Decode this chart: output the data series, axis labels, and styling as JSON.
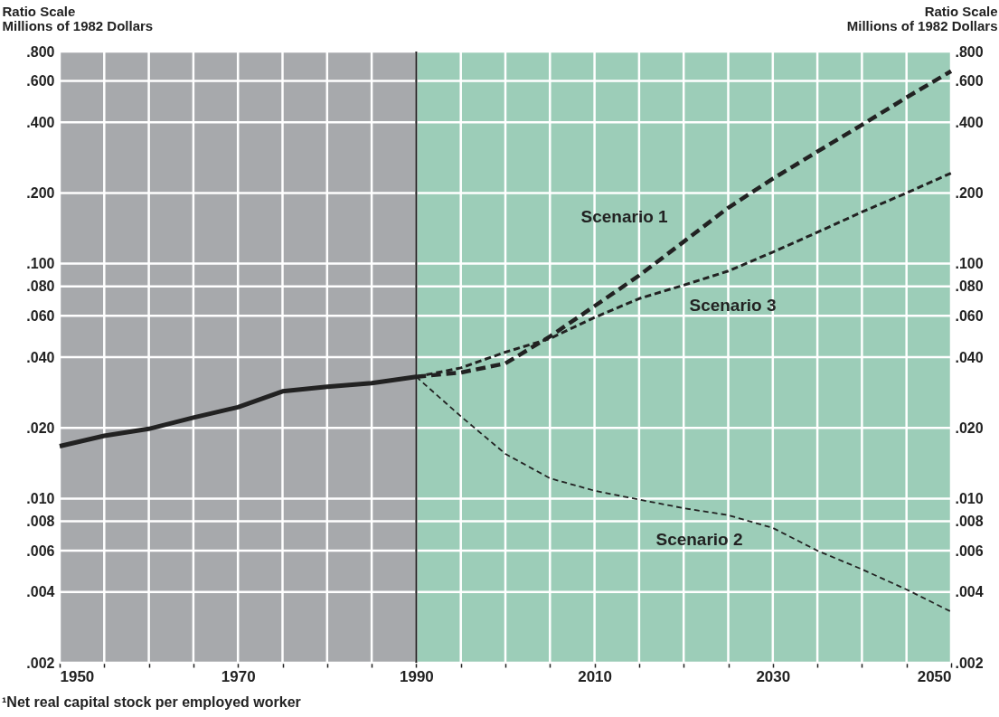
{
  "chart_data": {
    "type": "line",
    "ylabel": "Ratio Scale\nMillions of 1982 Dollars",
    "y2label": "Ratio Scale\nMillions of 1982 Dollars",
    "annotations": [
      "¹Net real capital stock per employed worker"
    ],
    "log": "y",
    "grid": true,
    "legend": false,
    "xlim": [
      1950,
      2050
    ],
    "xticks": [
      1950,
      {
        "value": 1955,
        "label": null
      },
      {
        "value": 1960,
        "label": null
      },
      {
        "value": 1965,
        "label": null
      },
      1970,
      {
        "value": 1975,
        "label": null
      },
      {
        "value": 1980,
        "label": null
      },
      {
        "value": 1985,
        "label": null
      },
      1990,
      {
        "value": 1995,
        "label": null
      },
      {
        "value": 2000,
        "label": null
      },
      {
        "value": 2005,
        "label": null
      },
      2010,
      {
        "value": 2015,
        "label": null
      },
      {
        "value": 2020,
        "label": null
      },
      {
        "value": 2025,
        "label": null
      },
      2030,
      {
        "value": 2035,
        "label": null
      },
      {
        "value": 2040,
        "label": null
      },
      {
        "value": 2045,
        "label": null
      },
      2050
    ],
    "ylim": [
      0.002,
      0.8
    ],
    "yticks": [
      {
        "value": 0.002,
        "label": ".002"
      },
      {
        "value": 0.004,
        "label": ".004"
      },
      {
        "value": 0.006,
        "label": ".006"
      },
      {
        "value": 0.008,
        "label": ".008"
      },
      {
        "value": 0.01,
        "label": ".010"
      },
      {
        "value": 0.02,
        "label": ".020"
      },
      {
        "value": 0.04,
        "label": ".040"
      },
      {
        "value": 0.06,
        "label": ".060"
      },
      {
        "value": 0.08,
        "label": ".080"
      },
      {
        "value": 0.1,
        "label": ".100"
      },
      {
        "value": 0.2,
        "label": ".200"
      },
      {
        "value": 0.4,
        "label": ".400"
      },
      {
        "value": 0.6,
        "label": ".600"
      },
      {
        "value": 0.8,
        "label": ".800"
      }
    ],
    "bands": [
      {
        "axis": "x",
        "from": 1950,
        "to": 1990,
        "color": "#a7a9ac"
      },
      {
        "axis": "x",
        "from": 1990,
        "to": 2050,
        "color": "#9ccdb8"
      }
    ],
    "ref_lines": [
      {
        "axis": "x",
        "value": 1990,
        "color": "#222222",
        "line_style": "solid"
      }
    ],
    "series": [
      {
        "color": "#222222",
        "line_style": "solid",
        "x": [
          1950,
          1955,
          1960,
          1965,
          1970,
          1975,
          1980,
          1985,
          1990
        ],
        "values": [
          0.0167,
          0.0185,
          0.0198,
          0.0221,
          0.0245,
          0.0286,
          0.0299,
          0.031,
          0.033
        ]
      },
      {
        "name": "Scenario 1",
        "color": "#222222",
        "line_style": "dashed",
        "x": [
          1990,
          1995,
          2000,
          2005,
          2010,
          2015,
          2020,
          2025,
          2030,
          2035,
          2040,
          2045,
          2050
        ],
        "values": [
          0.033,
          0.0344,
          0.0376,
          0.049,
          0.066,
          0.089,
          0.124,
          0.173,
          0.23,
          0.3,
          0.39,
          0.51,
          0.66
        ]
      },
      {
        "name": "Scenario 2",
        "color": "#222222",
        "line_style": "dashed",
        "x": [
          1990,
          1995,
          2000,
          2005,
          2010,
          2015,
          2020,
          2025,
          2030,
          2035,
          2040,
          2045,
          2050
        ],
        "values": [
          0.033,
          0.0224,
          0.0155,
          0.0122,
          0.0108,
          0.0099,
          0.0091,
          0.0085,
          0.0075,
          0.006,
          0.005,
          0.0041,
          0.0033
        ]
      },
      {
        "name": "Scenario 3",
        "color": "#222222",
        "line_style": "dashed",
        "x": [
          1990,
          1995,
          2000,
          2005,
          2010,
          2015,
          2020,
          2025,
          2030,
          2035,
          2040,
          2045,
          2050
        ],
        "values": [
          0.033,
          0.036,
          0.042,
          0.048,
          0.059,
          0.071,
          0.081,
          0.093,
          0.112,
          0.136,
          0.166,
          0.2,
          0.243
        ]
      }
    ]
  }
}
